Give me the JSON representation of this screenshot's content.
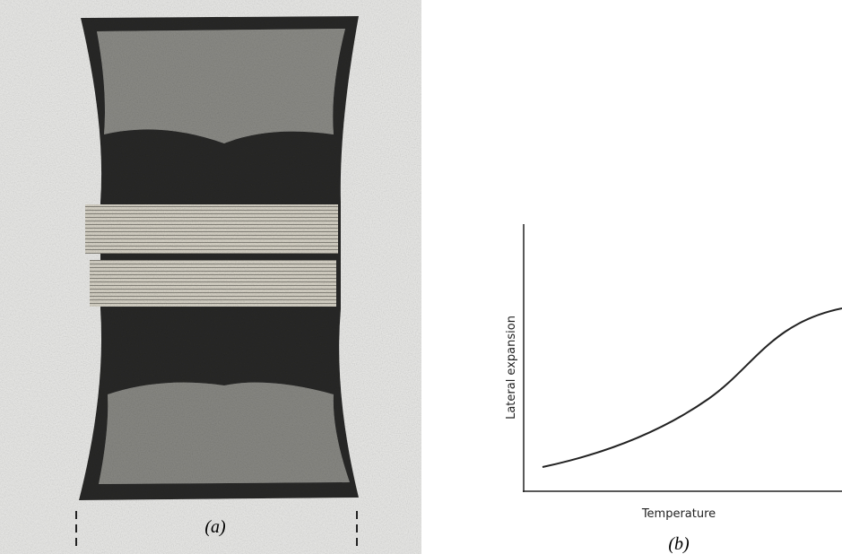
{
  "figure": {
    "panel_a": {
      "caption": "(a)"
    },
    "panel_b": {
      "caption": "(b)",
      "y_axis_label": "Lateral expansion",
      "x_axis_label": "Temperature"
    }
  }
}
